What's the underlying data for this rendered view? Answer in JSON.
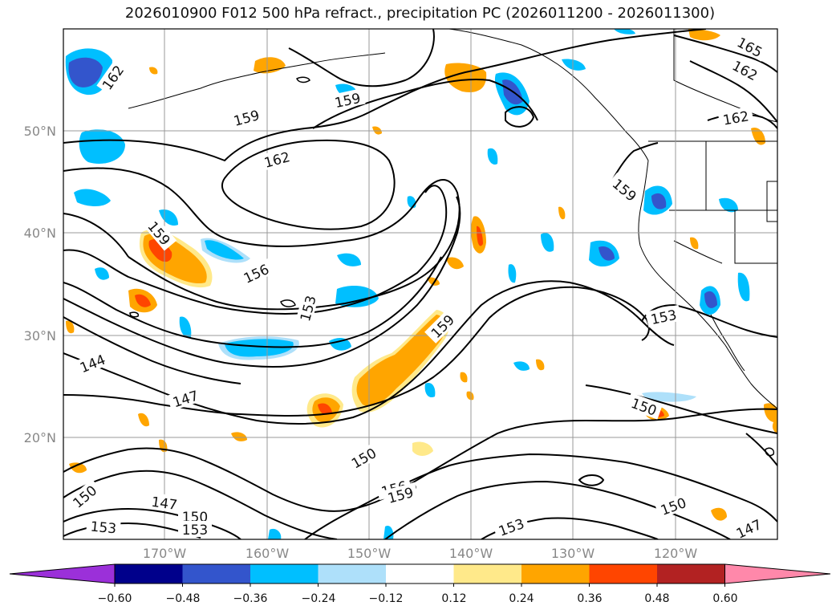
{
  "title": "2026010900 F012 500 hPa refract., precipitation PC (2026011200 - 2026011300)",
  "lat_labels": [
    "50°N",
    "40°N",
    "30°N",
    "20°N"
  ],
  "lon_labels": [
    "170°W",
    "160°W",
    "150°W",
    "140°W",
    "130°W",
    "120°W"
  ],
  "contour_labels": [
    "162",
    "159",
    "159",
    "162",
    "165",
    "162",
    "162",
    "159",
    "159",
    "156",
    "153",
    "159",
    "153",
    "144",
    "147",
    "150",
    "150",
    "150",
    "156",
    "159",
    "147",
    "150",
    "153",
    "153",
    "153",
    "150",
    "147"
  ],
  "colorbar": {
    "ticks": [
      "−0.60",
      "−0.48",
      "−0.36",
      "−0.24",
      "−0.12",
      "0.12",
      "0.24",
      "0.36",
      "0.48",
      "0.60"
    ],
    "colors": [
      "#9b30d9",
      "#00008b",
      "#3355cc",
      "#00bfff",
      "#aee0fa",
      "#ffffff",
      "#ffe98a",
      "#ffa500",
      "#ff4500",
      "#b22222",
      "#ff88aa"
    ]
  },
  "colors": {
    "frame": "#000000",
    "grid": "#999999",
    "contour": "#000000"
  }
}
